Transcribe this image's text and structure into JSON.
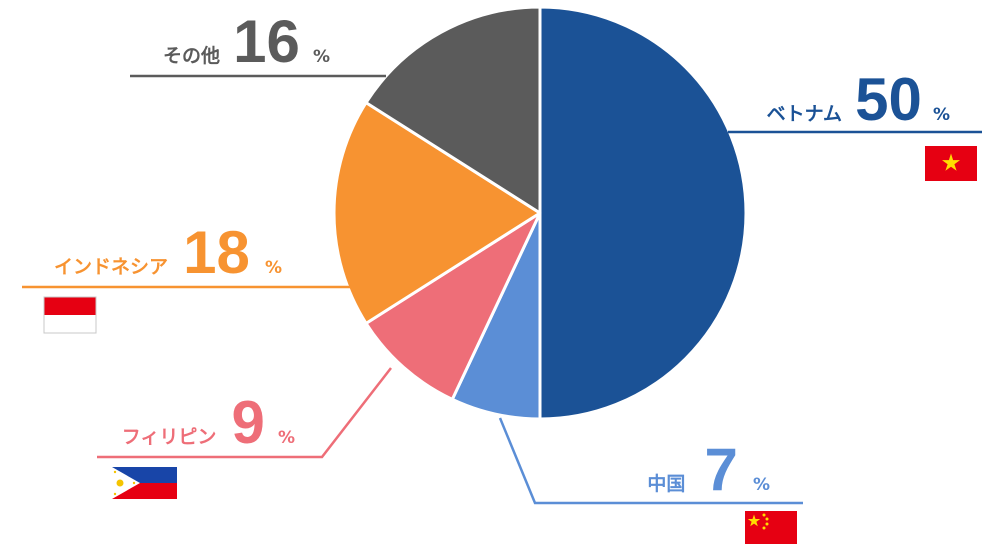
{
  "chart_data": {
    "type": "pie",
    "categories": [
      "ベトナム",
      "中国",
      "フィリピン",
      "インドネシア",
      "その他"
    ],
    "values": [
      50,
      7,
      9,
      18,
      16
    ],
    "unit": "%",
    "colors": [
      "#1b5296",
      "#5b8ed6",
      "#ee6e78",
      "#f79331",
      "#5b5b5b"
    ],
    "flags": [
      "vietnam-flag",
      "china-flag",
      "philippines-flag",
      "indonesia-flag",
      ""
    ]
  }
}
